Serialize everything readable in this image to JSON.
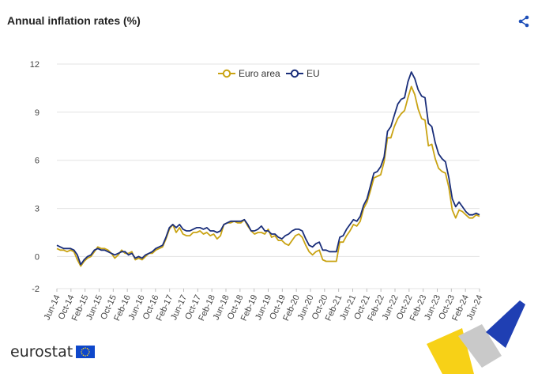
{
  "header": {
    "title": "Annual inflation rates (%)",
    "share_icon": "share-icon"
  },
  "brand": {
    "name": "eurostat",
    "flag_icon": "eu-flag-icon"
  },
  "colors": {
    "euro_area": "#c9a313",
    "eu": "#1a2e7a",
    "grid": "#e3e3e3"
  },
  "chart_data": {
    "type": "line",
    "title": "Annual inflation rates (%)",
    "xlabel": "",
    "ylabel": "",
    "ylim": [
      -2,
      12
    ],
    "yticks": [
      -2,
      0,
      3,
      6,
      9,
      12
    ],
    "grid": true,
    "legend": "top-center",
    "start": "Jun-14",
    "end": "Jun-24",
    "xticks": [
      "Jun-14",
      "Oct-14",
      "Feb-15",
      "Jun-15",
      "Oct-15",
      "Feb-16",
      "Jun-16",
      "Oct-16",
      "Feb-17",
      "Jun-17",
      "Oct-17",
      "Feb-18",
      "Jun-18",
      "Oct-18",
      "Feb-19",
      "Jun-19",
      "Oct-19",
      "Feb-20",
      "Jun-20",
      "Oct-20",
      "Feb-21",
      "Jun-21",
      "Oct-21",
      "Feb-22",
      "Jun-22",
      "Oct-22",
      "Feb-23",
      "Jun-23",
      "Oct-23",
      "Feb-24",
      "Jun-24"
    ],
    "series": [
      {
        "name": "Euro area",
        "values": [
          0.5,
          0.4,
          0.4,
          0.3,
          0.4,
          0.3,
          -0.2,
          -0.6,
          -0.3,
          -0.1,
          0.0,
          0.3,
          0.6,
          0.5,
          0.5,
          0.4,
          0.2,
          -0.1,
          0.1,
          0.4,
          0.2,
          0.2,
          0.3,
          -0.2,
          -0.1,
          -0.2,
          0.0,
          0.2,
          0.2,
          0.4,
          0.5,
          0.6,
          1.1,
          1.7,
          2.0,
          1.5,
          1.8,
          1.4,
          1.3,
          1.3,
          1.5,
          1.5,
          1.6,
          1.4,
          1.5,
          1.3,
          1.4,
          1.1,
          1.3,
          2.0,
          2.1,
          2.1,
          2.2,
          2.1,
          2.1,
          2.3,
          1.9,
          1.6,
          1.4,
          1.5,
          1.5,
          1.4,
          1.7,
          1.2,
          1.3,
          1.0,
          1.0,
          0.8,
          0.7,
          1.0,
          1.3,
          1.4,
          1.2,
          0.7,
          0.3,
          0.1,
          0.3,
          0.4,
          -0.2,
          -0.3,
          -0.3,
          -0.3,
          -0.3,
          0.9,
          0.9,
          1.3,
          1.6,
          2.0,
          1.9,
          2.2,
          3.0,
          3.4,
          4.1,
          4.9,
          5.0,
          5.1,
          5.9,
          7.4,
          7.4,
          8.1,
          8.6,
          8.9,
          9.1,
          9.9,
          10.6,
          10.1,
          9.2,
          8.6,
          8.5,
          6.9,
          7.0,
          6.1,
          5.5,
          5.3,
          5.2,
          4.3,
          2.9,
          2.4,
          2.9,
          2.8,
          2.6,
          2.4,
          2.4,
          2.6,
          2.5
        ]
      },
      {
        "name": "EU",
        "values": [
          0.7,
          0.6,
          0.5,
          0.5,
          0.5,
          0.4,
          0.1,
          -0.5,
          -0.2,
          0.0,
          0.1,
          0.4,
          0.5,
          0.4,
          0.4,
          0.3,
          0.2,
          0.1,
          0.2,
          0.3,
          0.3,
          0.1,
          0.2,
          -0.1,
          0.0,
          -0.1,
          0.1,
          0.2,
          0.3,
          0.5,
          0.6,
          0.7,
          1.2,
          1.8,
          2.0,
          1.8,
          2.0,
          1.7,
          1.6,
          1.6,
          1.7,
          1.8,
          1.8,
          1.7,
          1.8,
          1.6,
          1.6,
          1.5,
          1.6,
          2.0,
          2.1,
          2.2,
          2.2,
          2.2,
          2.2,
          2.3,
          2.0,
          1.6,
          1.6,
          1.7,
          1.9,
          1.6,
          1.6,
          1.4,
          1.4,
          1.2,
          1.1,
          1.3,
          1.4,
          1.6,
          1.7,
          1.7,
          1.6,
          1.1,
          0.7,
          0.6,
          0.8,
          0.9,
          0.4,
          0.4,
          0.3,
          0.3,
          0.3,
          1.2,
          1.3,
          1.7,
          2.0,
          2.3,
          2.2,
          2.5,
          3.2,
          3.6,
          4.4,
          5.2,
          5.3,
          5.6,
          6.2,
          7.8,
          8.1,
          8.8,
          9.5,
          9.8,
          9.9,
          10.9,
          11.5,
          11.1,
          10.4,
          10.0,
          9.9,
          8.3,
          8.1,
          7.1,
          6.4,
          6.1,
          5.9,
          4.9,
          3.6,
          3.1,
          3.4,
          3.1,
          2.8,
          2.6,
          2.6,
          2.7,
          2.6
        ]
      }
    ]
  }
}
